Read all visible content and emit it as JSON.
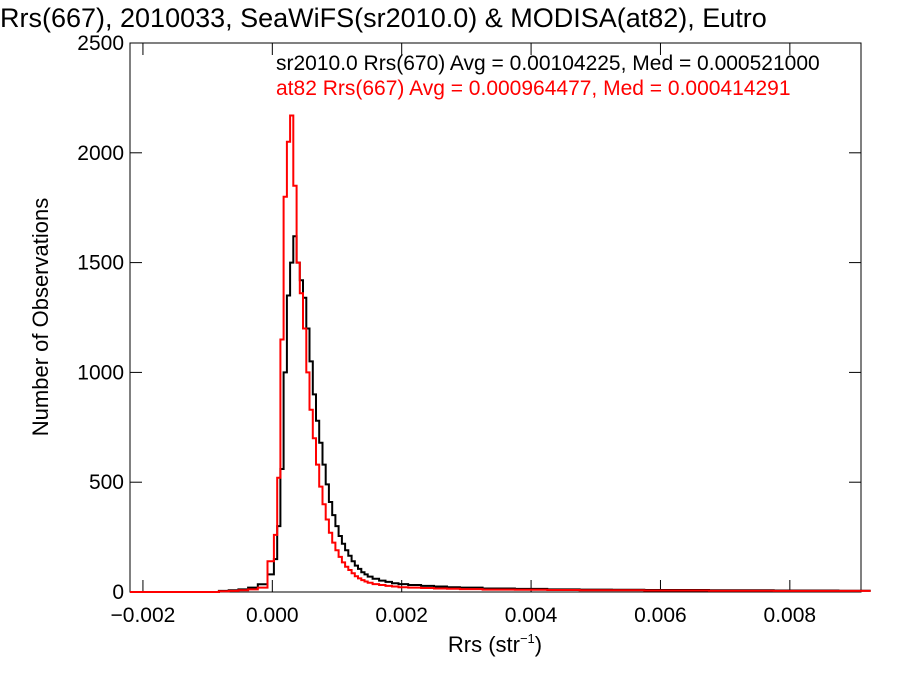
{
  "chart_data": {
    "type": "histogram",
    "title": "Rrs(667), 2010033, SeaWiFS(sr2010.0) & MODISA(at82), Eutro",
    "xlabel_main": "Rrs (str",
    "xlabel_sup": "−1",
    "xlabel_close": ")",
    "ylabel": "Number of Observations",
    "xlim": [
      -0.0022,
      0.0091
    ],
    "ylim": [
      0,
      2500
    ],
    "x_ticks": [
      -0.002,
      0.0,
      0.002,
      0.004,
      0.006,
      0.008
    ],
    "x_tick_labels": [
      "−0.002",
      "0.000",
      "0.002",
      "0.004",
      "0.006",
      "0.008"
    ],
    "y_ticks": [
      0,
      500,
      1000,
      1500,
      2000,
      2500
    ],
    "y_tick_labels": [
      "0",
      "500",
      "1000",
      "1500",
      "2000",
      "2500"
    ],
    "series": [
      {
        "name": "sr2010.0",
        "legend": "sr2010.0 Rrs(670) Avg = 0.00104225, Med = 0.000521000",
        "color": "#000000",
        "x": [
          -0.00075,
          -0.0006,
          -0.00045,
          -0.0003,
          -0.00015,
          0.0,
          5e-05,
          0.0001,
          0.00015,
          0.0002,
          0.00025,
          0.0003,
          0.00035,
          0.0004,
          0.00045,
          0.0005,
          0.00055,
          0.0006,
          0.00065,
          0.0007,
          0.00075,
          0.0008,
          0.00085,
          0.0009,
          0.00095,
          0.001,
          0.00105,
          0.0011,
          0.00115,
          0.0012,
          0.00125,
          0.0013,
          0.00135,
          0.0014,
          0.00145,
          0.0015,
          0.0016,
          0.0017,
          0.0018,
          0.0019,
          0.002,
          0.0022,
          0.0024,
          0.0026,
          0.0028,
          0.003,
          0.0035,
          0.004,
          0.0045,
          0.005,
          0.0055,
          0.006,
          0.0065,
          0.007,
          0.0075,
          0.008,
          0.0085,
          0.009
        ],
        "y": [
          5,
          8,
          12,
          20,
          35,
          80,
          150,
          300,
          560,
          1000,
          1350,
          1500,
          1620,
          1500,
          1420,
          1340,
          1200,
          1050,
          900,
          780,
          680,
          580,
          490,
          410,
          350,
          300,
          255,
          220,
          190,
          165,
          140,
          120,
          105,
          90,
          80,
          70,
          60,
          52,
          46,
          40,
          36,
          32,
          28,
          25,
          22,
          20,
          16,
          14,
          12,
          11,
          10,
          9,
          9,
          8,
          8,
          7,
          7,
          6
        ]
      },
      {
        "name": "at82",
        "legend": "at82 Rrs(667) Avg = 0.000964477, Med = 0.000414291",
        "color": "#ff0000",
        "x": [
          -0.00075,
          -0.0006,
          -0.00045,
          -0.0003,
          -0.00015,
          0.0,
          5e-05,
          0.0001,
          0.00015,
          0.0002,
          0.00025,
          0.0003,
          0.00035,
          0.0004,
          0.00045,
          0.0005,
          0.00055,
          0.0006,
          0.00065,
          0.0007,
          0.00075,
          0.0008,
          0.00085,
          0.0009,
          0.00095,
          0.001,
          0.00105,
          0.0011,
          0.00115,
          0.0012,
          0.00125,
          0.0013,
          0.00135,
          0.0014,
          0.00145,
          0.0015,
          0.0016,
          0.0017,
          0.0018,
          0.0019,
          0.002,
          0.0022,
          0.0024,
          0.0026,
          0.0028,
          0.003,
          0.0035,
          0.004,
          0.0045,
          0.005,
          0.0055,
          0.006,
          0.0065,
          0.007,
          0.0075,
          0.008,
          0.0085,
          0.009
        ],
        "y": [
          3,
          5,
          8,
          12,
          20,
          140,
          260,
          520,
          1150,
          1800,
          2050,
          2170,
          1850,
          1500,
          1360,
          1200,
          1000,
          830,
          700,
          580,
          480,
          400,
          330,
          270,
          225,
          190,
          160,
          135,
          115,
          100,
          85,
          72,
          62,
          54,
          48,
          42,
          36,
          32,
          28,
          25,
          22,
          20,
          18,
          16,
          15,
          13,
          11,
          10,
          9,
          8,
          8,
          7,
          7,
          6,
          6,
          5,
          5,
          5
        ]
      }
    ]
  }
}
